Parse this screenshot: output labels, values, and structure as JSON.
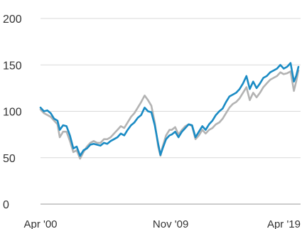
{
  "chart_data": {
    "type": "line",
    "title": "",
    "xlabel": "",
    "ylabel": "",
    "ylim": [
      0,
      200
    ],
    "yticks": [
      "0",
      "50",
      "100",
      "150",
      "200"
    ],
    "xticks": [
      {
        "label": "Apr '00",
        "date": "2000-04"
      },
      {
        "label": "Nov '09",
        "date": "2009-11"
      },
      {
        "label": "Apr '19",
        "date": "2019-04"
      }
    ],
    "grid": true,
    "x_start": "2000-04",
    "x_end": "2019-04",
    "series": [
      {
        "color": "#1a8bc4",
        "points": [
          [
            "2000-04",
            104
          ],
          [
            "2000-07",
            100
          ],
          [
            "2000-10",
            101
          ],
          [
            "2001-01",
            98
          ],
          [
            "2001-04",
            92
          ],
          [
            "2001-07",
            90
          ],
          [
            "2001-09",
            80
          ],
          [
            "2001-12",
            85
          ],
          [
            "2002-03",
            84
          ],
          [
            "2002-06",
            74
          ],
          [
            "2002-09",
            60
          ],
          [
            "2002-12",
            62
          ],
          [
            "2003-03",
            52
          ],
          [
            "2003-06",
            58
          ],
          [
            "2003-09",
            60
          ],
          [
            "2003-12",
            64
          ],
          [
            "2004-03",
            65
          ],
          [
            "2004-06",
            64
          ],
          [
            "2004-09",
            63
          ],
          [
            "2004-12",
            66
          ],
          [
            "2005-03",
            65
          ],
          [
            "2005-06",
            68
          ],
          [
            "2005-09",
            70
          ],
          [
            "2005-12",
            72
          ],
          [
            "2006-03",
            76
          ],
          [
            "2006-06",
            74
          ],
          [
            "2006-09",
            80
          ],
          [
            "2006-12",
            85
          ],
          [
            "2007-03",
            88
          ],
          [
            "2007-06",
            93
          ],
          [
            "2007-09",
            96
          ],
          [
            "2007-12",
            104
          ],
          [
            "2008-03",
            100
          ],
          [
            "2008-06",
            99
          ],
          [
            "2008-09",
            85
          ],
          [
            "2008-12",
            65
          ],
          [
            "2009-02",
            53
          ],
          [
            "2009-04",
            60
          ],
          [
            "2009-07",
            70
          ],
          [
            "2009-10",
            74
          ],
          [
            "2009-12",
            75
          ],
          [
            "2010-03",
            78
          ],
          [
            "2010-06",
            72
          ],
          [
            "2010-09",
            78
          ],
          [
            "2010-12",
            82
          ],
          [
            "2011-03",
            86
          ],
          [
            "2011-06",
            85
          ],
          [
            "2011-09",
            72
          ],
          [
            "2011-12",
            78
          ],
          [
            "2012-03",
            84
          ],
          [
            "2012-06",
            80
          ],
          [
            "2012-09",
            86
          ],
          [
            "2012-12",
            90
          ],
          [
            "2013-03",
            96
          ],
          [
            "2013-06",
            100
          ],
          [
            "2013-09",
            103
          ],
          [
            "2013-12",
            110
          ],
          [
            "2014-03",
            116
          ],
          [
            "2014-06",
            118
          ],
          [
            "2014-09",
            120
          ],
          [
            "2014-12",
            124
          ],
          [
            "2015-03",
            130
          ],
          [
            "2015-06",
            138
          ],
          [
            "2015-09",
            124
          ],
          [
            "2015-12",
            132
          ],
          [
            "2016-03",
            125
          ],
          [
            "2016-06",
            130
          ],
          [
            "2016-09",
            136
          ],
          [
            "2016-12",
            138
          ],
          [
            "2017-03",
            142
          ],
          [
            "2017-06",
            144
          ],
          [
            "2017-09",
            146
          ],
          [
            "2017-12",
            150
          ],
          [
            "2018-03",
            146
          ],
          [
            "2018-06",
            148
          ],
          [
            "2018-09",
            152
          ],
          [
            "2018-12",
            132
          ],
          [
            "2019-02",
            138
          ],
          [
            "2019-04",
            148
          ]
        ]
      },
      {
        "color": "#b3b3b3",
        "points": [
          [
            "2000-04",
            102
          ],
          [
            "2000-07",
            98
          ],
          [
            "2000-10",
            96
          ],
          [
            "2001-01",
            94
          ],
          [
            "2001-04",
            90
          ],
          [
            "2001-07",
            86
          ],
          [
            "2001-09",
            72
          ],
          [
            "2001-12",
            78
          ],
          [
            "2002-03",
            78
          ],
          [
            "2002-06",
            68
          ],
          [
            "2002-09",
            56
          ],
          [
            "2002-12",
            58
          ],
          [
            "2003-03",
            49
          ],
          [
            "2003-06",
            56
          ],
          [
            "2003-09",
            62
          ],
          [
            "2003-12",
            66
          ],
          [
            "2004-03",
            68
          ],
          [
            "2004-06",
            66
          ],
          [
            "2004-09",
            66
          ],
          [
            "2004-12",
            70
          ],
          [
            "2005-03",
            70
          ],
          [
            "2005-06",
            72
          ],
          [
            "2005-09",
            76
          ],
          [
            "2005-12",
            80
          ],
          [
            "2006-03",
            84
          ],
          [
            "2006-06",
            82
          ],
          [
            "2006-09",
            88
          ],
          [
            "2006-12",
            94
          ],
          [
            "2007-03",
            98
          ],
          [
            "2007-06",
            104
          ],
          [
            "2007-09",
            110
          ],
          [
            "2007-12",
            117
          ],
          [
            "2008-03",
            112
          ],
          [
            "2008-06",
            106
          ],
          [
            "2008-09",
            88
          ],
          [
            "2008-12",
            62
          ],
          [
            "2009-02",
            52
          ],
          [
            "2009-04",
            62
          ],
          [
            "2009-07",
            74
          ],
          [
            "2009-10",
            80
          ],
          [
            "2009-12",
            80
          ],
          [
            "2010-03",
            83
          ],
          [
            "2010-06",
            75
          ],
          [
            "2010-09",
            80
          ],
          [
            "2010-12",
            84
          ],
          [
            "2011-03",
            86
          ],
          [
            "2011-06",
            84
          ],
          [
            "2011-09",
            70
          ],
          [
            "2011-12",
            74
          ],
          [
            "2012-03",
            80
          ],
          [
            "2012-06",
            76
          ],
          [
            "2012-09",
            80
          ],
          [
            "2012-12",
            82
          ],
          [
            "2013-03",
            86
          ],
          [
            "2013-06",
            88
          ],
          [
            "2013-09",
            92
          ],
          [
            "2013-12",
            98
          ],
          [
            "2014-03",
            104
          ],
          [
            "2014-06",
            108
          ],
          [
            "2014-09",
            110
          ],
          [
            "2014-12",
            114
          ],
          [
            "2015-03",
            120
          ],
          [
            "2015-06",
            126
          ],
          [
            "2015-09",
            112
          ],
          [
            "2015-12",
            120
          ],
          [
            "2016-03",
            115
          ],
          [
            "2016-06",
            120
          ],
          [
            "2016-09",
            126
          ],
          [
            "2016-12",
            130
          ],
          [
            "2017-03",
            134
          ],
          [
            "2017-06",
            136
          ],
          [
            "2017-09",
            138
          ],
          [
            "2017-12",
            142
          ],
          [
            "2018-03",
            140
          ],
          [
            "2018-06",
            141
          ],
          [
            "2018-09",
            143
          ],
          [
            "2018-12",
            122
          ],
          [
            "2019-02",
            132
          ],
          [
            "2019-04",
            144
          ]
        ]
      }
    ]
  }
}
